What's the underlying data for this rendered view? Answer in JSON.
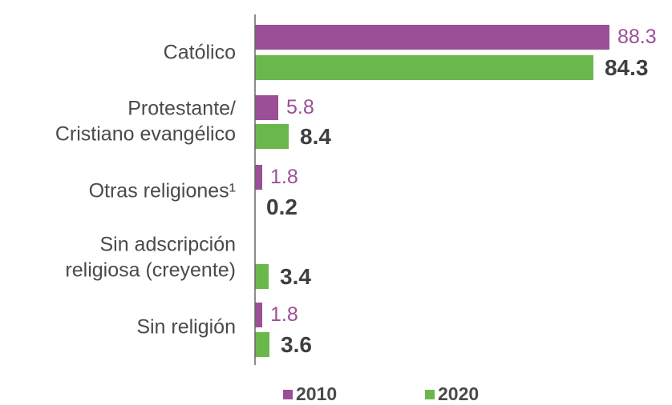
{
  "chart_data": {
    "type": "bar",
    "orientation": "horizontal",
    "categories": [
      [
        "Católico"
      ],
      [
        "Protestante/",
        "Cristiano evangélico"
      ],
      [
        "Otras religiones¹"
      ],
      [
        "Sin adscripción",
        "religiosa (creyente)"
      ],
      [
        "Sin religión"
      ]
    ],
    "series": [
      {
        "name": "2010",
        "color": "#9b4f96",
        "values": [
          88.3,
          5.8,
          1.8,
          null,
          1.8
        ],
        "labels": [
          "88.3",
          "5.8",
          "1.8",
          "",
          "1.8"
        ]
      },
      {
        "name": "2020",
        "color": "#6ab84c",
        "values": [
          84.3,
          8.4,
          0.2,
          3.4,
          3.6
        ],
        "labels": [
          "84.3",
          "8.4",
          "0.2",
          "3.4",
          "3.6"
        ]
      }
    ],
    "xlim": [
      0,
      88.3
    ],
    "grid": false,
    "legend_position": "bottom"
  },
  "colors": {
    "series_2010": "#9b4f96",
    "series_2020": "#6ab84c",
    "axis": "#666666",
    "label_2020": "#3f3f3f"
  }
}
